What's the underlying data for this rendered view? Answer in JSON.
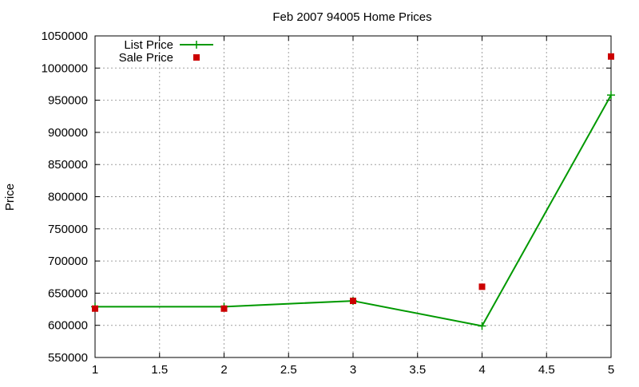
{
  "chart_data": {
    "type": "line",
    "title": "Feb 2007 94005 Home Prices",
    "xlabel": "",
    "ylabel": "Price",
    "xlim": [
      1,
      5
    ],
    "ylim": [
      550000,
      1050000
    ],
    "x_ticks": [
      "1",
      "1.5",
      "2",
      "2.5",
      "3",
      "3.5",
      "4",
      "4.5",
      "5"
    ],
    "x_tick_values": [
      1,
      1.5,
      2,
      2.5,
      3,
      3.5,
      4,
      4.5,
      5
    ],
    "y_ticks": [
      "550000",
      "600000",
      "650000",
      "700000",
      "750000",
      "800000",
      "850000",
      "900000",
      "950000",
      "1000000",
      "1050000"
    ],
    "y_tick_values": [
      550000,
      600000,
      650000,
      700000,
      750000,
      800000,
      850000,
      900000,
      950000,
      1000000,
      1050000
    ],
    "grid": true,
    "legend_position": "top-left",
    "series": [
      {
        "name": "List Price",
        "style": "linespoints",
        "marker": "plus",
        "color": "#009900",
        "x": [
          1,
          2,
          3,
          4,
          5
        ],
        "values": [
          629000,
          629000,
          638000,
          599000,
          958000
        ]
      },
      {
        "name": "Sale Price",
        "style": "points",
        "marker": "square",
        "color": "#cc0000",
        "x": [
          1,
          2,
          3,
          4,
          5
        ],
        "values": [
          626000,
          626000,
          638000,
          660000,
          1018000
        ]
      }
    ]
  }
}
